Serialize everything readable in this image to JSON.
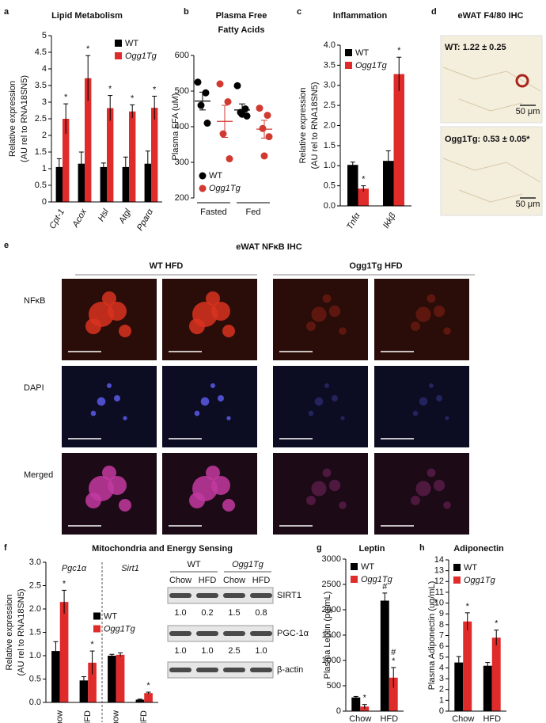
{
  "chart_data": [
    {
      "type": "bar",
      "label": "a",
      "title": "Lipid Metabolism",
      "ylabel": [
        "Relative expression",
        "(AU rel to RNA18SN5)"
      ],
      "categories": [
        "Cpt-1",
        "Acox",
        "Hsl",
        "Atgl",
        "Pparα"
      ],
      "series": [
        {
          "name": "WT",
          "color": "#000000",
          "values": [
            1.05,
            1.15,
            1.05,
            1.05,
            1.15
          ],
          "errors": [
            0.25,
            0.35,
            0.12,
            0.3,
            0.38
          ]
        },
        {
          "name": "Ogg1Tg",
          "color": "#e02b2b",
          "values": [
            2.5,
            3.72,
            2.82,
            2.72,
            2.83
          ],
          "errors": [
            0.45,
            0.68,
            0.38,
            0.2,
            0.35
          ],
          "annotations": [
            "*",
            "*",
            "*",
            "*",
            "*"
          ]
        }
      ],
      "ylim": [
        0,
        5
      ],
      "yticks": [
        0,
        0.5,
        1,
        1.5,
        2,
        2.5,
        3,
        3.5,
        4,
        4.5,
        5
      ],
      "legend": "upper-right"
    },
    {
      "type": "dot",
      "label": "b",
      "title": [
        "Plasma Free",
        "Fatty Acids"
      ],
      "ylabel": [
        "Plasma FFA (uM)"
      ],
      "categories": [
        "Fasted",
        "Fed"
      ],
      "series": [
        {
          "name": "WT",
          "color": "#000000",
          "values": [
            [
              525,
              495,
              460,
              410
            ],
            [
              515,
              450,
              440,
              430,
              435
            ]
          ],
          "means": [
            472,
            447
          ],
          "errors": [
            25,
            17
          ]
        },
        {
          "name": "Ogg1Tg",
          "color": "#d03a30",
          "values": [
            [
              520,
              470,
              380,
              310
            ],
            [
              452,
              432,
              395,
              372,
              318
            ]
          ],
          "means": [
            415,
            393
          ],
          "errors": [
            45,
            25
          ]
        }
      ],
      "ylim": [
        200,
        600
      ],
      "yticks": [
        200,
        300,
        400,
        500,
        600
      ],
      "legend": "lower-left"
    },
    {
      "type": "bar",
      "label": "c",
      "title": "Inflammation",
      "ylabel": [
        "Relative expression",
        "(AU rel to RNA18SN5)"
      ],
      "categories": [
        "Tnfα",
        "Ikkβ"
      ],
      "series": [
        {
          "name": "WT",
          "color": "#000000",
          "values": [
            1.02,
            1.12
          ],
          "errors": [
            0.07,
            0.25
          ]
        },
        {
          "name": "Ogg1Tg",
          "color": "#e02b2b",
          "values": [
            0.43,
            3.28
          ],
          "errors": [
            0.07,
            0.42
          ],
          "annotations": [
            "*",
            "*"
          ]
        }
      ],
      "ylim": [
        0,
        4
      ],
      "yticks": [
        {
          "value": 0,
          "label": "0.0"
        },
        0.5,
        {
          "value": 1,
          "label": "1.0"
        },
        1.5,
        {
          "value": 2,
          "label": "2.0"
        },
        2.5,
        {
          "value": 3,
          "label": "3.0"
        },
        3.5,
        {
          "value": 4,
          "label": "4.0"
        }
      ],
      "legend": "upper-left"
    },
    {
      "type": "bar",
      "label": "f",
      "title": "Mitochondria and Energy Sensing",
      "ylabel": [
        "Relative expression",
        "(AU rel to RNA18SN5)"
      ],
      "groups": [
        "Pgc1α",
        "Sirt1"
      ],
      "categories": [
        "Chow",
        "HFD",
        "Chow",
        "HFD"
      ],
      "series": [
        {
          "name": "WT",
          "color": "#000000",
          "values": [
            1.1,
            0.47,
            1.0,
            0.06
          ],
          "errors": [
            0.2,
            0.08,
            0.03,
            0.01
          ]
        },
        {
          "name": "Ogg1Tg",
          "color": "#e02b2b",
          "values": [
            2.15,
            0.85,
            1.02,
            0.2
          ],
          "errors": [
            0.25,
            0.25,
            0.04,
            0.02
          ],
          "annotations": [
            "*",
            "*",
            null,
            "*"
          ]
        }
      ],
      "ylim": [
        0,
        3
      ],
      "yticks": [
        {
          "value": 0,
          "label": "0.0"
        },
        0.5,
        {
          "value": 1,
          "label": "1.0"
        },
        1.5,
        {
          "value": 2,
          "label": "2.0"
        },
        2.5,
        {
          "value": 3,
          "label": "3.0"
        }
      ],
      "legend": "right"
    },
    {
      "type": "bar",
      "label": "g",
      "title": "Leptin",
      "ylabel": [
        "Plasma Leptin (pg/mL)"
      ],
      "categories": [
        "Chow",
        "HFD"
      ],
      "series": [
        {
          "name": "WT",
          "color": "#000000",
          "values": [
            270,
            2180
          ],
          "errors": [
            20,
            150
          ],
          "annotations": [
            null,
            "#"
          ]
        },
        {
          "name": "Ogg1Tg",
          "color": "#e02b2b",
          "values": [
            90,
            660
          ],
          "errors": [
            40,
            200
          ],
          "annotations": [
            "*",
            [
              "#",
              "*"
            ]
          ]
        }
      ],
      "ylim": [
        0,
        3000
      ],
      "yticks": [
        0,
        500,
        1000,
        1500,
        2000,
        2500,
        3000
      ],
      "legend": "upper-left"
    },
    {
      "type": "bar",
      "label": "h",
      "title": "Adiponectin",
      "ylabel": [
        "Plasma Adiponectin (ug/mL)"
      ],
      "categories": [
        "Chow",
        "HFD"
      ],
      "series": [
        {
          "name": "WT",
          "color": "#000000",
          "values": [
            4.5,
            4.2
          ],
          "errors": [
            0.55,
            0.3
          ]
        },
        {
          "name": "Ogg1Tg",
          "color": "#e02b2b",
          "values": [
            8.3,
            6.8
          ],
          "errors": [
            0.8,
            0.7
          ],
          "annotations": [
            "*",
            "*"
          ]
        }
      ],
      "ylim": [
        0,
        14
      ],
      "yticks": [
        0,
        1,
        2,
        3,
        4,
        5,
        6,
        7,
        8,
        9,
        10,
        11,
        12,
        13,
        14
      ],
      "legend": "upper-left"
    }
  ],
  "panels": {
    "d": {
      "label": "d",
      "title": "eWAT F4/80 IHC",
      "top": "WT: 1.22 ± 0.25",
      "bottom": "Ogg1Tg: 0.53 ± 0.05*",
      "scale": [
        "50 μm",
        "50 μm"
      ]
    },
    "e": {
      "label": "e",
      "title": "eWAT NFκB IHC",
      "columns": [
        "WT HFD",
        "Ogg1Tg HFD"
      ],
      "rows": [
        "NFκB",
        "DAPI",
        "Merged"
      ]
    },
    "blot": {
      "groups": [
        "WT",
        "Ogg1Tg"
      ],
      "lanes": [
        "Chow",
        "HFD",
        "Chow",
        "HFD"
      ],
      "rows": [
        {
          "name": "SIRT1",
          "values": [
            "1.0",
            "0.2",
            "1.5",
            "0.8"
          ]
        },
        {
          "name": "PGC-1α",
          "values": [
            "1.0",
            "1.0",
            "2.5",
            "1.0"
          ]
        },
        {
          "name": "β-actin"
        }
      ]
    }
  }
}
